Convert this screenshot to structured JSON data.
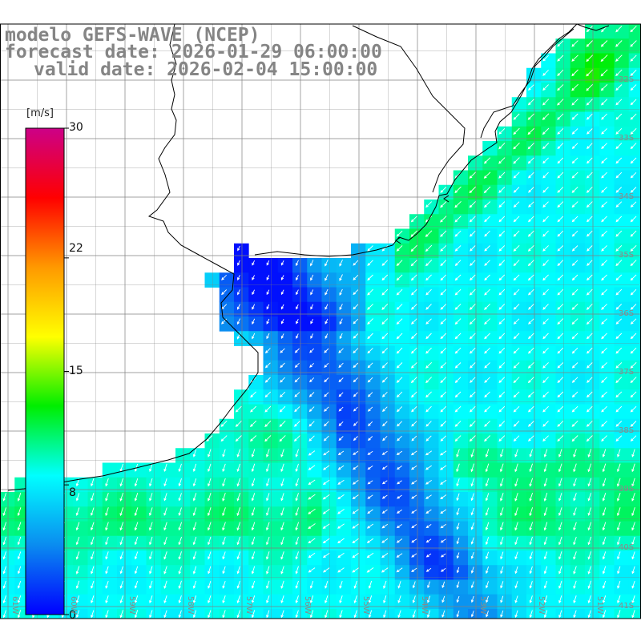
{
  "titles": {
    "model": "modelo GEFS-WAVE (NCEP)",
    "forecast": "forecast date: 2026-01-29 06:00:00",
    "valid": "valid date: 2026-02-04 15:00:00"
  },
  "colorbar": {
    "unit": "[m/s]",
    "ticks": [
      "30",
      "22",
      "15",
      "8",
      "0"
    ],
    "tick_values": [
      30,
      22,
      15,
      8,
      0
    ],
    "colors": [
      "#0000ff",
      "#0a8cf0",
      "#00ffff",
      "#00ee00",
      "#ffff00",
      "#ff9900",
      "#ff0000",
      "#cc0088"
    ]
  },
  "grid": {
    "lat_labels": [
      "32S",
      "33S",
      "34S",
      "35S",
      "36S",
      "37S",
      "38S",
      "39S",
      "40S",
      "41S"
    ],
    "lat_values": [
      -32,
      -33,
      -34,
      -35,
      -36,
      -37,
      -38,
      -39,
      -40,
      -41
    ],
    "lon_labels": [
      "61W",
      "60W",
      "59W",
      "58W",
      "57W",
      "56W",
      "55W",
      "54W",
      "53W",
      "52W",
      "51W"
    ],
    "lon_values": [
      -61,
      -60,
      -59,
      -58,
      -57,
      -56,
      -55,
      -54,
      -53,
      -52,
      -51
    ]
  },
  "map": {
    "variable": "wind speed",
    "arrow_direction": "toward SW",
    "land_color": "#ffffff",
    "coastline_color": "#000000",
    "gridline_color": "#808080"
  }
}
